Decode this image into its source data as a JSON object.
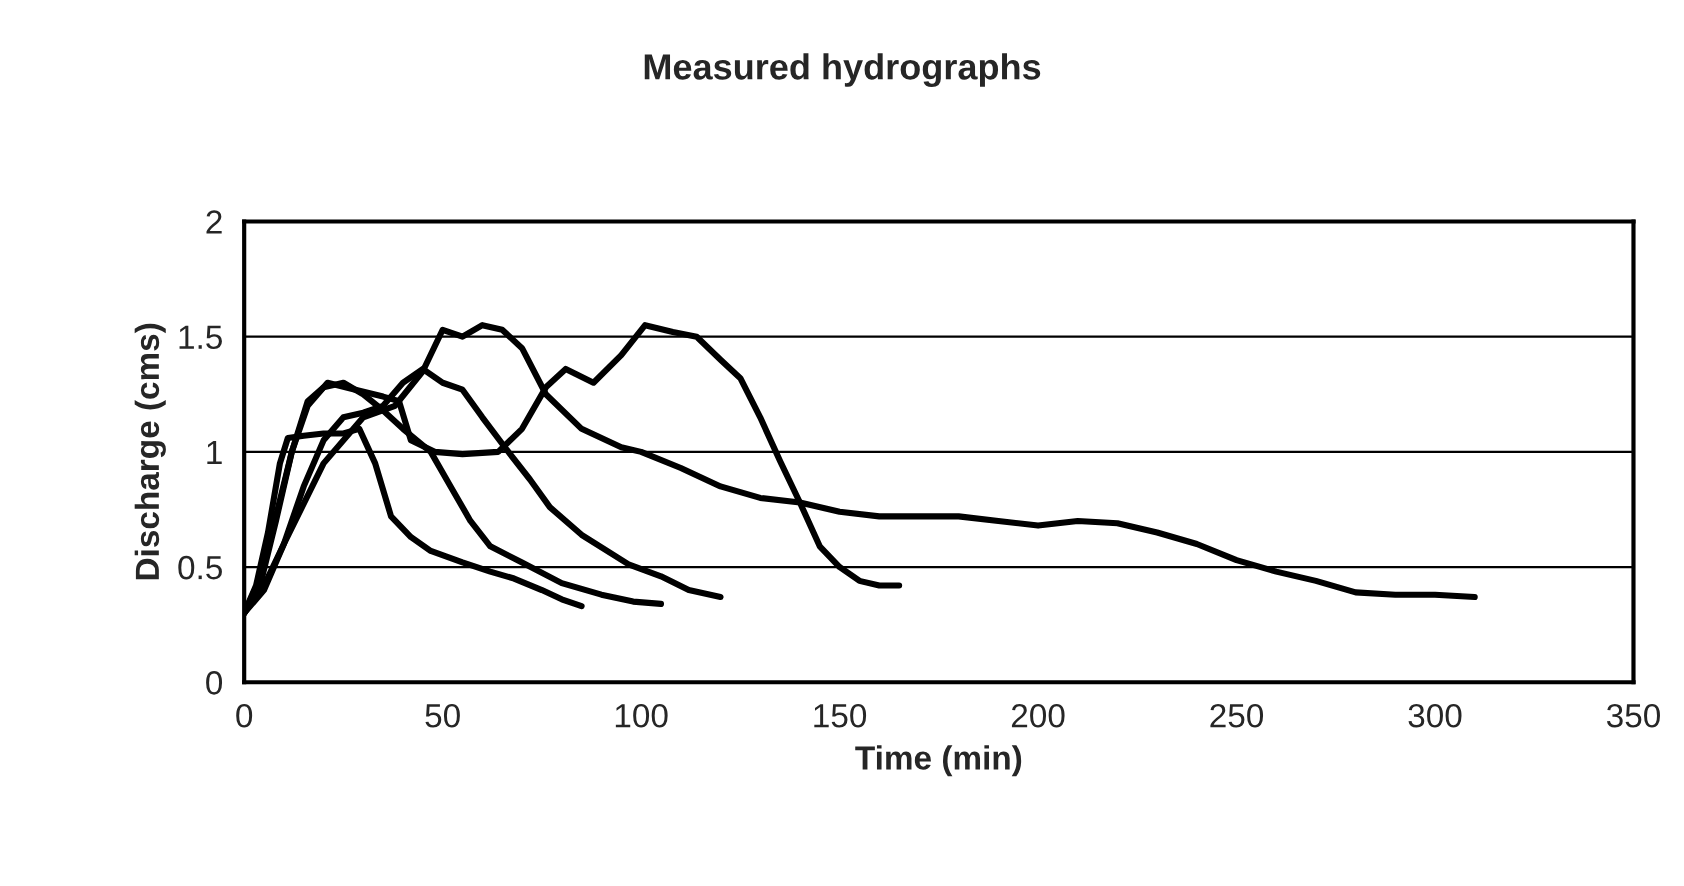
{
  "chart_data": {
    "type": "line",
    "title": "Measured hydrographs",
    "xlabel": "Time (min)",
    "ylabel": "Discharge (cms)",
    "xlim": [
      0,
      350
    ],
    "xticks": [
      0,
      50,
      100,
      150,
      200,
      250,
      300,
      350
    ],
    "ylim": [
      0,
      2
    ],
    "yticks": [
      0,
      0.5,
      1,
      1.5,
      2
    ],
    "grid": "y",
    "legend": false,
    "marker": "none",
    "line_style": "solid",
    "series": [
      {
        "color": "#000000",
        "x": [
          0,
          3,
          6,
          9,
          11,
          15,
          20,
          25,
          29,
          33,
          37,
          42,
          47,
          55,
          62,
          68,
          75,
          80,
          85
        ],
        "values": [
          0.3,
          0.42,
          0.65,
          0.95,
          1.06,
          1.07,
          1.08,
          1.08,
          1.1,
          0.95,
          0.72,
          0.63,
          0.57,
          0.52,
          0.48,
          0.45,
          0.4,
          0.36,
          0.33
        ]
      },
      {
        "color": "#000000",
        "x": [
          0,
          4,
          8,
          12,
          16,
          20,
          25,
          30,
          35,
          40,
          47,
          52,
          57,
          62,
          70,
          80,
          90,
          98,
          105
        ],
        "values": [
          0.3,
          0.42,
          0.7,
          1.0,
          1.22,
          1.28,
          1.3,
          1.25,
          1.18,
          1.1,
          1.0,
          0.85,
          0.7,
          0.59,
          0.52,
          0.43,
          0.38,
          0.35,
          0.34
        ]
      },
      {
        "color": "#000000",
        "x": [
          0,
          4,
          8,
          12,
          16,
          21,
          28,
          35,
          39,
          42,
          48,
          55,
          64,
          70,
          76,
          81,
          88,
          95,
          101,
          108,
          114,
          120,
          125,
          130,
          135,
          140,
          145,
          150,
          155,
          160,
          165
        ],
        "values": [
          0.3,
          0.45,
          0.72,
          1.0,
          1.2,
          1.3,
          1.27,
          1.24,
          1.22,
          1.05,
          1.0,
          0.99,
          1.0,
          1.1,
          1.28,
          1.36,
          1.3,
          1.42,
          1.55,
          1.52,
          1.5,
          1.4,
          1.32,
          1.15,
          0.96,
          0.78,
          0.59,
          0.5,
          0.44,
          0.42,
          0.42
        ]
      },
      {
        "color": "#000000",
        "x": [
          0,
          5,
          10,
          15,
          20,
          25,
          30,
          35,
          40,
          45,
          50,
          55,
          60,
          67,
          72,
          77,
          85,
          97,
          105,
          112,
          120
        ],
        "values": [
          0.3,
          0.4,
          0.6,
          0.85,
          1.05,
          1.15,
          1.17,
          1.2,
          1.3,
          1.36,
          1.3,
          1.27,
          1.15,
          0.99,
          0.88,
          0.76,
          0.64,
          0.51,
          0.46,
          0.4,
          0.37
        ]
      },
      {
        "color": "#000000",
        "x": [
          0,
          5,
          10,
          20,
          30,
          38,
          45,
          50,
          55,
          60,
          65,
          70,
          76,
          85,
          95,
          100,
          110,
          120,
          130,
          140,
          150,
          160,
          170,
          180,
          190,
          200,
          210,
          220,
          230,
          240,
          250,
          260,
          270,
          280,
          290,
          300,
          310
        ],
        "values": [
          0.3,
          0.42,
          0.6,
          0.95,
          1.15,
          1.2,
          1.35,
          1.53,
          1.5,
          1.55,
          1.53,
          1.45,
          1.25,
          1.1,
          1.02,
          1.0,
          0.93,
          0.85,
          0.8,
          0.78,
          0.74,
          0.72,
          0.72,
          0.72,
          0.7,
          0.68,
          0.7,
          0.69,
          0.65,
          0.6,
          0.53,
          0.48,
          0.44,
          0.39,
          0.38,
          0.38,
          0.37
        ]
      }
    ]
  }
}
